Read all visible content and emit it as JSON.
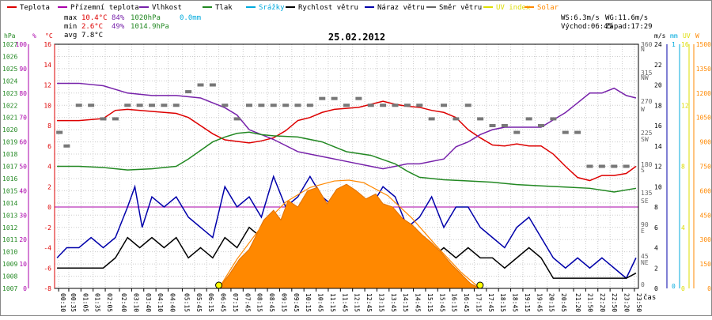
{
  "chart_data": {
    "type": "line",
    "title": "25.02.2012",
    "legend": [
      {
        "label": "Teplota",
        "color": "#dd0000"
      },
      {
        "label": "Přízemní teplota",
        "color": "#aa00aa"
      },
      {
        "label": "Vlhkost",
        "color": "#7722aa"
      },
      {
        "label": "Tlak",
        "color": "#228822"
      },
      {
        "label": "Srážky",
        "color": "#00aadd"
      },
      {
        "label": "Rychlost větru",
        "color": "#000000"
      },
      {
        "label": "Náraz větru",
        "color": "#0000aa"
      },
      {
        "label": "Směr větru",
        "color": "#666666"
      },
      {
        "label": "UV index",
        "color": "#dddd00"
      },
      {
        "label": "Solar",
        "color": "#ff8800"
      }
    ],
    "stats": {
      "max": {
        "label": "max",
        "temp": "10.4°C",
        "hum": "84%",
        "press": "1020hPa",
        "rain": "0.0mm"
      },
      "min": {
        "label": "min",
        "temp": "2.6°C",
        "hum": "49%",
        "press": "1014.9hPa"
      },
      "avg": {
        "label": "avg",
        "temp": "7.8°C"
      }
    },
    "wind_info": {
      "ws": "WS:6.3m/s",
      "wg": "WG:11.6m/s",
      "sunrise": "Východ:06:45",
      "sunset": "Západ:17:29"
    },
    "axes": {
      "hpa": {
        "unit": "hPa",
        "ticks": [
          "1027",
          "1026",
          "1025",
          "1024",
          "1023",
          "1022",
          "1021",
          "1020",
          "1019",
          "1018",
          "1017",
          "1016",
          "1015",
          "1014",
          "1013",
          "1012",
          "1011",
          "1010",
          "1009",
          "1008",
          "1007"
        ],
        "range": [
          1007,
          1027
        ]
      },
      "pct": {
        "unit": "%",
        "ticks": [
          "100",
          "90",
          "80",
          "70",
          "60",
          "50",
          "40",
          "30",
          "20",
          "10",
          "0"
        ],
        "range": [
          0,
          100
        ]
      },
      "celsius": {
        "unit": "°C",
        "ticks": [
          "16",
          "14",
          "12",
          "10",
          "8",
          "6",
          "4",
          "2",
          "0",
          "-2",
          "-4",
          "-6",
          "-8"
        ],
        "range": [
          -8,
          16
        ]
      },
      "wind_dir": {
        "ticks": [
          "360",
          "N",
          "315",
          "NW",
          "270",
          "W",
          "225",
          "SW",
          "180",
          "S",
          "135",
          "SE",
          "90",
          "E",
          "45",
          "NE",
          "0"
        ]
      },
      "ms": {
        "unit": "m/s",
        "ticks": [
          "24",
          "22",
          "20",
          "18",
          "16",
          "14",
          "12",
          "10",
          "8",
          "6",
          "4",
          "2",
          "0"
        ],
        "range": [
          0,
          24
        ]
      },
      "mm": {
        "unit": "mm",
        "ticks": [
          "1",
          "0"
        ]
      },
      "uv": {
        "unit": "UV",
        "ticks": [
          "16",
          "12",
          "8",
          "4",
          "0"
        ]
      },
      "w": {
        "unit": "W",
        "ticks": [
          "1500",
          "1350",
          "1200",
          "1050",
          "900",
          "750",
          "600",
          "450",
          "300",
          "150",
          "0"
        ],
        "range": [
          0,
          1500
        ]
      }
    },
    "x_label": "čas",
    "x_ticks": [
      "00:10",
      "00:35",
      "01:05",
      "01:35",
      "02:05",
      "02:40",
      "03:10",
      "03:40",
      "04:10",
      "04:40",
      "05:15",
      "05:45",
      "06:15",
      "06:45",
      "07:15",
      "07:45",
      "08:15",
      "08:45",
      "09:15",
      "09:45",
      "10:15",
      "10:45",
      "11:15",
      "11:45",
      "12:15",
      "12:45",
      "13:15",
      "13:45",
      "14:15",
      "14:45",
      "15:15",
      "15:45",
      "16:15",
      "16:45",
      "17:15",
      "17:45",
      "18:15",
      "18:45",
      "19:15",
      "19:45",
      "20:15",
      "20:45",
      "21:20",
      "21:50",
      "22:20",
      "22:50",
      "23:20",
      "23:50"
    ],
    "x_range_hours": [
      0,
      24
    ],
    "series": [
      {
        "name": "Teplota",
        "unit": "°C",
        "color": "#dd0000",
        "x": [
          0.1,
          1,
          2,
          2.5,
          3,
          4,
          5,
          5.5,
          6,
          6.5,
          7,
          8,
          8.5,
          9,
          9.5,
          10,
          10.5,
          11,
          11.5,
          12,
          12.5,
          13,
          13.5,
          14,
          14.5,
          15,
          15.5,
          16,
          16.5,
          17,
          17.5,
          18,
          18.5,
          19,
          19.5,
          20,
          20.5,
          21,
          21.5,
          22,
          22.5,
          23,
          23.5,
          23.9
        ],
        "y": [
          8.5,
          8.5,
          8.7,
          9.5,
          9.6,
          9.4,
          9.2,
          8.8,
          8,
          7.2,
          6.6,
          6.3,
          6.5,
          6.8,
          7.5,
          8.5,
          8.8,
          9.3,
          9.6,
          9.7,
          9.8,
          10.1,
          10.4,
          10.1,
          9.9,
          9.8,
          9.5,
          9.3,
          8.8,
          7.6,
          6.8,
          6.1,
          6.0,
          6.2,
          6.0,
          6.0,
          5.2,
          4.0,
          2.9,
          2.6,
          3.1,
          3.1,
          3.3,
          4.0
        ]
      },
      {
        "name": "Vlhkost",
        "unit": "%",
        "color": "#7722aa",
        "x": [
          0.1,
          1,
          2,
          3,
          4,
          5,
          6,
          7,
          7.5,
          8,
          8.5,
          9,
          10,
          11,
          12,
          13,
          13.5,
          14,
          14.5,
          15,
          16,
          16.5,
          17,
          17.5,
          18,
          18.5,
          19,
          19.5,
          20,
          20.5,
          21,
          21.5,
          22,
          22.5,
          23,
          23.5,
          23.9
        ],
        "y": [
          84,
          84,
          83,
          80,
          79,
          79,
          78,
          74,
          71,
          65,
          63,
          61,
          56,
          54,
          52,
          50,
          49,
          50,
          51,
          51,
          53,
          58,
          60,
          63,
          65,
          66,
          66,
          66,
          66,
          69,
          72,
          76,
          80,
          80,
          82,
          79,
          78
        ]
      },
      {
        "name": "Tlak",
        "unit": "hPa",
        "color": "#228822",
        "x": [
          0.1,
          1,
          2,
          3,
          4,
          4.5,
          5,
          5.5,
          6,
          6.5,
          7,
          7.5,
          8,
          8.5,
          9,
          10,
          11,
          11.5,
          12,
          13,
          14,
          14.5,
          15,
          16,
          17,
          18,
          19,
          20,
          21,
          22,
          23,
          23.9
        ],
        "y": [
          1017.0,
          1017.0,
          1016.9,
          1016.7,
          1016.8,
          1016.9,
          1017.0,
          1017.6,
          1018.3,
          1019.0,
          1019.4,
          1019.7,
          1019.8,
          1019.6,
          1019.5,
          1019.4,
          1019.0,
          1018.6,
          1018.2,
          1017.9,
          1017.2,
          1016.6,
          1016.1,
          1015.9,
          1015.8,
          1015.7,
          1015.5,
          1015.4,
          1015.3,
          1015.2,
          1014.9,
          1015.2
        ]
      },
      {
        "name": "Náraz větru",
        "unit": "m/s",
        "color": "#0000aa",
        "x": [
          0.1,
          0.5,
          1,
          1.5,
          2,
          2.5,
          3,
          3.3,
          3.6,
          4,
          4.5,
          5,
          5.5,
          6,
          6.5,
          7,
          7.5,
          8,
          8.5,
          9,
          9.5,
          10,
          10.5,
          11,
          11.5,
          12,
          12.5,
          13,
          13.5,
          14,
          14.5,
          15,
          15.5,
          16,
          16.5,
          17,
          17.5,
          18,
          18.5,
          19,
          19.5,
          20,
          20.5,
          21,
          21.5,
          22,
          22.5,
          23,
          23.5,
          23.9
        ],
        "y": [
          3,
          4,
          4,
          5,
          4,
          5,
          8,
          10,
          6,
          9,
          8,
          9,
          7,
          6,
          5,
          10,
          8,
          9,
          7,
          11,
          8,
          9,
          11,
          9,
          8,
          10,
          9,
          8,
          10,
          9,
          6,
          7,
          9,
          6,
          8,
          8,
          6,
          5,
          4,
          6,
          7,
          5,
          3,
          2,
          3,
          2,
          3,
          2,
          1,
          3
        ]
      },
      {
        "name": "Rychlost větru",
        "unit": "m/s",
        "color": "#000000",
        "x": [
          0.1,
          1,
          2,
          2.5,
          3,
          3.5,
          4,
          4.5,
          5,
          5.5,
          6,
          6.5,
          7,
          7.5,
          8,
          8.5,
          9,
          9.5,
          10,
          10.5,
          11,
          11.5,
          12,
          12.5,
          13,
          13.5,
          14,
          14.5,
          15,
          15.5,
          16,
          16.5,
          17,
          17.5,
          18,
          18.5,
          19,
          19.5,
          20,
          20.5,
          21,
          21.5,
          22,
          22.5,
          23,
          23.5,
          23.9
        ],
        "y": [
          2,
          2,
          2,
          3,
          5,
          4,
          5,
          4,
          5,
          3,
          4,
          3,
          5,
          4,
          6,
          5,
          5,
          4,
          6,
          5,
          5,
          6,
          5,
          4,
          5,
          4,
          3,
          2,
          4,
          3,
          4,
          3,
          4,
          3,
          3,
          2,
          3,
          4,
          3,
          1,
          1,
          1,
          1,
          1,
          1,
          1,
          1.5
        ]
      },
      {
        "name": "Solar",
        "unit": "W",
        "color": "#ff8800",
        "x": [
          6.75,
          7.2,
          7.6,
          8,
          8.3,
          8.6,
          9,
          9.3,
          9.6,
          10,
          10.4,
          10.8,
          11.2,
          11.6,
          12,
          12.4,
          12.8,
          13.2,
          13.5,
          13.9,
          14.3,
          14.7,
          15.1,
          15.5,
          15.9,
          16.3,
          16.7,
          17.1,
          17.49
        ],
        "y": [
          0,
          90,
          180,
          240,
          330,
          420,
          480,
          420,
          540,
          500,
          600,
          620,
          520,
          610,
          640,
          600,
          550,
          580,
          520,
          500,
          430,
          390,
          330,
          280,
          220,
          150,
          90,
          30,
          0
        ]
      },
      {
        "name": "Solar theoretical",
        "unit": "W",
        "color": "#ff8800",
        "x": [
          6.75,
          7.5,
          8.5,
          9.5,
          10.5,
          11.5,
          12.1,
          12.7,
          13.7,
          14.7,
          15.7,
          16.7,
          17.49
        ],
        "y": [
          0,
          180,
          380,
          530,
          620,
          660,
          665,
          650,
          570,
          430,
          260,
          100,
          0
        ]
      },
      {
        "name": "Směr větru",
        "unit": "deg",
        "color": "#666666",
        "x": [
          0.2,
          0.5,
          1,
          1.5,
          2,
          2.5,
          3,
          3.5,
          4,
          4.5,
          5,
          5.5,
          6,
          6.5,
          7,
          7.5,
          8,
          8.5,
          9,
          9.5,
          10,
          10.5,
          11,
          11.5,
          12,
          12.5,
          13,
          13.5,
          14,
          14.5,
          15,
          15.5,
          16,
          16.5,
          17,
          17.5,
          18,
          18.5,
          19,
          19.5,
          20,
          20.5,
          21,
          21.5,
          22,
          22.5,
          23,
          23.5
        ],
        "y": [
          230,
          210,
          270,
          270,
          250,
          250,
          270,
          270,
          270,
          270,
          270,
          290,
          300,
          300,
          270,
          250,
          270,
          270,
          270,
          270,
          270,
          270,
          280,
          280,
          270,
          280,
          270,
          270,
          270,
          270,
          270,
          250,
          270,
          250,
          270,
          250,
          240,
          240,
          230,
          250,
          240,
          250,
          230,
          230,
          180,
          180,
          180,
          180
        ]
      }
    ]
  }
}
